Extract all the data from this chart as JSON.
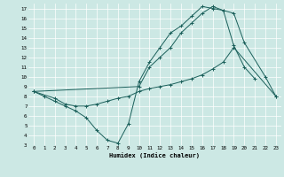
{
  "xlabel": "Humidex (Indice chaleur)",
  "bg_color": "#cce8e4",
  "line_color": "#1a5f5a",
  "xlim": [
    -0.5,
    23.5
  ],
  "ylim": [
    3,
    17.5
  ],
  "xticks": [
    0,
    1,
    2,
    3,
    4,
    5,
    6,
    7,
    8,
    9,
    10,
    11,
    12,
    13,
    14,
    15,
    16,
    17,
    18,
    19,
    20,
    21,
    22,
    23
  ],
  "yticks": [
    3,
    4,
    5,
    6,
    7,
    8,
    9,
    10,
    11,
    12,
    13,
    14,
    15,
    16,
    17
  ],
  "line1_x": [
    0,
    1,
    2,
    3,
    4,
    5,
    6,
    7,
    8,
    9,
    10,
    11,
    12,
    13,
    14,
    15,
    16,
    17,
    18,
    19,
    20,
    21
  ],
  "line1_y": [
    8.5,
    8.0,
    7.5,
    7.0,
    6.5,
    5.8,
    4.5,
    3.5,
    3.2,
    5.2,
    9.5,
    11.5,
    13.0,
    14.5,
    15.2,
    16.2,
    17.2,
    17.0,
    16.8,
    13.2,
    11.0,
    9.8
  ],
  "line2_x": [
    0,
    2,
    3,
    4,
    5,
    6,
    7,
    8,
    9,
    10,
    11,
    12,
    13,
    14,
    15,
    16,
    17,
    18,
    19,
    23
  ],
  "line2_y": [
    8.5,
    7.8,
    7.2,
    7.0,
    7.0,
    7.2,
    7.5,
    7.8,
    8.0,
    8.5,
    8.8,
    9.0,
    9.2,
    9.5,
    9.8,
    10.2,
    10.8,
    11.5,
    13.0,
    8.0
  ],
  "line3_x": [
    0,
    10,
    11,
    12,
    13,
    14,
    15,
    16,
    17,
    18,
    19,
    20,
    22,
    23
  ],
  "line3_y": [
    8.5,
    9.0,
    11.0,
    12.0,
    13.0,
    14.5,
    15.5,
    16.5,
    17.2,
    16.8,
    16.5,
    13.5,
    10.0,
    8.0
  ],
  "xlabel_fontsize": 5.0,
  "tick_fontsize": 4.2
}
